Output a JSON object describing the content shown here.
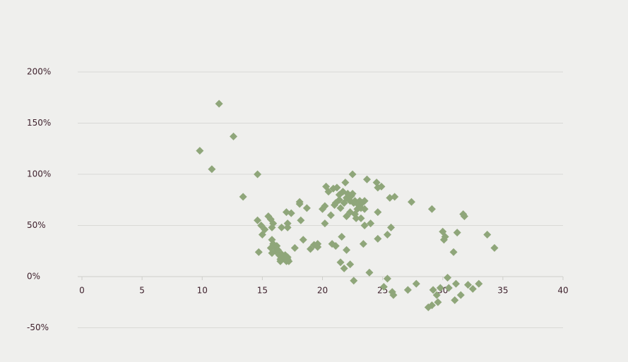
{
  "chart_data": {
    "type": "scatter",
    "color": "#8fa67a",
    "grid": true,
    "xlim": [
      0,
      40
    ],
    "xticks": [
      0,
      5,
      10,
      15,
      20,
      25,
      30,
      35,
      40
    ],
    "ylim": [
      -50,
      200
    ],
    "yticks": [
      {
        "value": -50,
        "label": "-50%"
      },
      {
        "value": 0,
        "label": "0%"
      },
      {
        "value": 50,
        "label": "50%"
      },
      {
        "value": 100,
        "label": "100%"
      },
      {
        "value": 150,
        "label": "150%"
      },
      {
        "value": 200,
        "label": "200%"
      }
    ],
    "x": [
      9.8,
      10.8,
      11.4,
      12.6,
      13.4,
      14.6,
      14.6,
      14.7,
      14.9,
      15.0,
      15.2,
      15.5,
      15.7,
      15.8,
      15.9,
      15.8,
      15.9,
      15.7,
      15.8,
      16.0,
      16.1,
      16.2,
      16.3,
      16.4,
      16.5,
      16.6,
      16.7,
      16.9,
      17.0,
      17.1,
      17.2,
      17.1,
      16.5,
      16.6,
      17.0,
      17.1,
      17.4,
      17.7,
      17.1,
      18.1,
      18.1,
      18.2,
      18.4,
      18.7,
      19.0,
      19.3,
      19.6,
      19.6,
      20.0,
      20.2,
      20.2,
      20.3,
      20.5,
      20.7,
      20.8,
      20.9,
      21.0,
      21.1,
      21.2,
      21.1,
      21.4,
      21.4,
      21.5,
      21.6,
      21.5,
      21.8,
      21.7,
      21.8,
      21.9,
      22.0,
      22.0,
      22.0,
      22.1,
      22.3,
      22.3,
      22.3,
      22.4,
      22.5,
      22.5,
      22.6,
      22.7,
      22.7,
      22.8,
      22.9,
      23.0,
      23.1,
      23.2,
      23.2,
      23.3,
      23.4,
      23.5,
      23.5,
      23.5,
      23.7,
      23.9,
      24.0,
      22.6,
      24.5,
      24.6,
      24.6,
      24.6,
      24.9,
      25.1,
      25.4,
      25.4,
      25.6,
      25.7,
      25.8,
      25.9,
      26.0,
      27.1,
      27.4,
      27.8,
      28.8,
      29.1,
      29.1,
      29.2,
      29.5,
      29.6,
      29.8,
      30.0,
      30.1,
      30.2,
      30.4,
      30.5,
      30.9,
      31.1,
      31.0,
      31.2,
      31.5,
      31.7,
      31.8,
      32.1,
      32.5,
      33.0,
      33.7,
      34.3
    ],
    "values": [
      123,
      105,
      169,
      137,
      78,
      100,
      55,
      24,
      50,
      41,
      46,
      59,
      56,
      48,
      52,
      36,
      32,
      28,
      23,
      29,
      25,
      30,
      26,
      21,
      17,
      22,
      18,
      21,
      15,
      19,
      15,
      17,
      15,
      48,
      63,
      48,
      62,
      28,
      52,
      71,
      73,
      55,
      36,
      67,
      27,
      31,
      29,
      32,
      66,
      52,
      69,
      88,
      83,
      60,
      32,
      86,
      70,
      30,
      87,
      72,
      75,
      80,
      67,
      39,
      14,
      8,
      83,
      72,
      92,
      77,
      59,
      26,
      81,
      74,
      12,
      63,
      79,
      100,
      81,
      72,
      61,
      74,
      57,
      66,
      70,
      74,
      67,
      57,
      72,
      32,
      74,
      50,
      66,
      95,
      4,
      52,
      -4,
      92,
      87,
      63,
      37,
      88,
      -10,
      -2,
      41,
      77,
      48,
      -15,
      -18,
      78,
      -13,
      73,
      -7,
      -30,
      -28,
      66,
      -13,
      -18,
      -25,
      -11,
      44,
      36,
      39,
      -1,
      -11,
      24,
      -7,
      -23,
      43,
      -18,
      61,
      59,
      -8,
      -12,
      -7,
      41,
      28
    ]
  }
}
